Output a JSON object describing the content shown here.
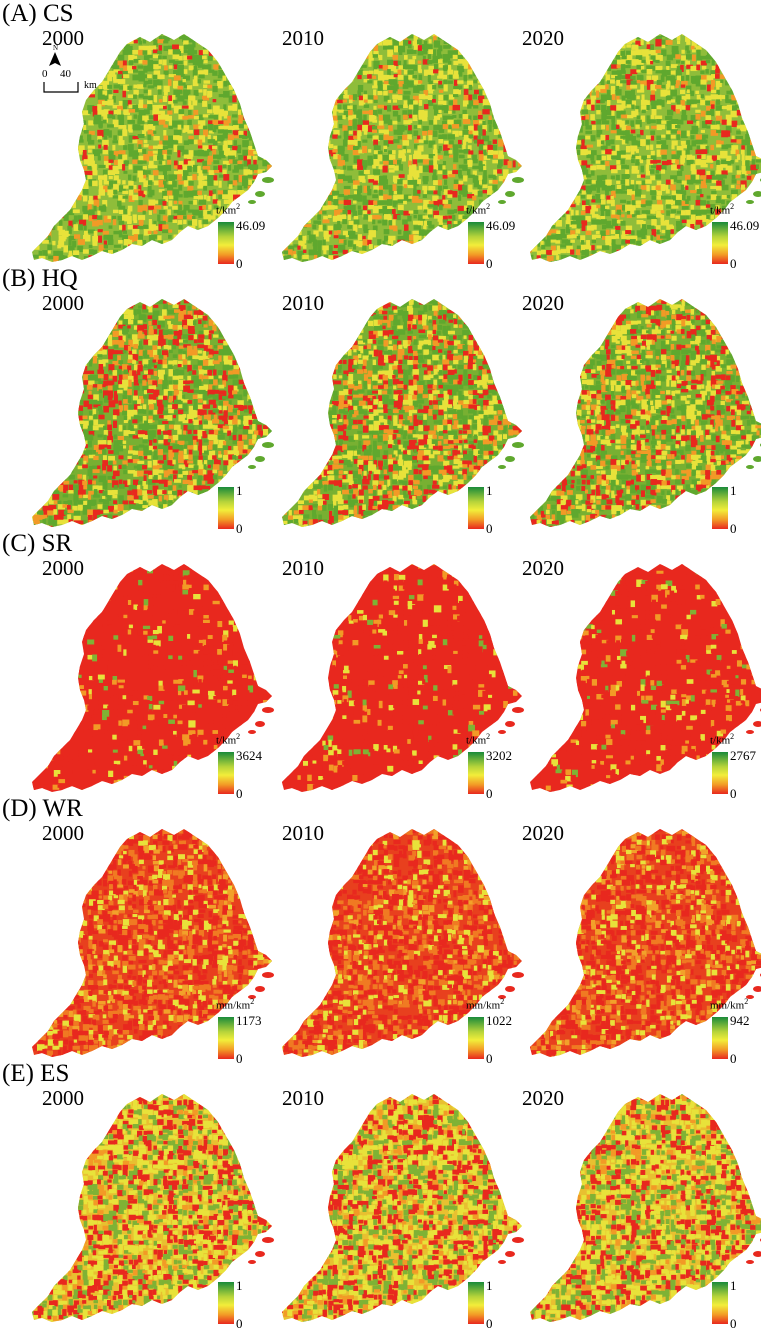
{
  "years": [
    "2000",
    "2010",
    "2020"
  ],
  "scale_bar": {
    "north": "N",
    "zero": "0",
    "forty": "40",
    "unit": "km"
  },
  "colors": {
    "high": "#1a8a3a",
    "mid": "#f2ee3a",
    "low": "#e8281e"
  },
  "panels": [
    {
      "label": "(A) CS",
      "unit": "t/km",
      "unit_sup": "2",
      "legend_max": [
        "46.09",
        "46.09",
        "46.09"
      ],
      "legend_min": "0",
      "tone": "green"
    },
    {
      "label": "(B) HQ",
      "unit": "",
      "unit_sup": "",
      "legend_max": [
        "1",
        "1",
        "1"
      ],
      "legend_min": "0",
      "tone": "greenred"
    },
    {
      "label": "(C) SR",
      "unit": "t/km",
      "unit_sup": "2",
      "legend_max": [
        "3624",
        "3202",
        "2767"
      ],
      "legend_min": "0",
      "tone": "red"
    },
    {
      "label": "(D) WR",
      "unit": "mm/km",
      "unit_sup": "2",
      "legend_max": [
        "1173",
        "1022",
        "942"
      ],
      "legend_min": "0",
      "tone": "redorange"
    },
    {
      "label": "(E) ES",
      "unit": "",
      "unit_sup": "",
      "legend_max": [
        "1",
        "1",
        "1"
      ],
      "legend_min": "0",
      "tone": "mixed"
    }
  ]
}
